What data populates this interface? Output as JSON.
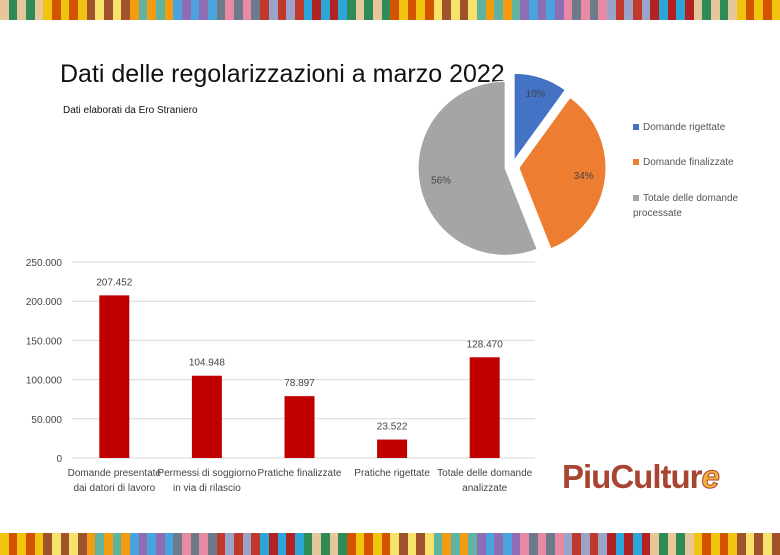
{
  "title": "Dati delle regolarizzazioni a marzo 2022",
  "subtitle": "Dati elaborati da Ero Straniero",
  "logo": {
    "main": "PiuCultur",
    "tail": "e"
  },
  "chart_data": [
    {
      "type": "pie",
      "labels": [
        "Domande rigettate",
        "Domande finalizzate",
        "Totale delle domande processate"
      ],
      "values": [
        10,
        34,
        56
      ],
      "value_labels": [
        "10%",
        "34%",
        "56%"
      ],
      "colors": [
        "#4472c4",
        "#ed7d31",
        "#a5a5a5"
      ],
      "legend": "right"
    },
    {
      "type": "bar",
      "categories": [
        [
          "Domande presentate",
          "dai datori di lavoro"
        ],
        [
          "Permessi di soggiorno",
          "in via di rilascio"
        ],
        [
          "Pratiche finalizzate"
        ],
        [
          "Pratiche rigettate"
        ],
        [
          "Totale delle domande",
          "analizzate"
        ]
      ],
      "values": [
        207452,
        104948,
        78897,
        23522,
        128470
      ],
      "value_labels": [
        "207.452",
        "104.948",
        "78.897",
        "23.522",
        "128.470"
      ],
      "color": "#c00000",
      "ylim": [
        0,
        250000
      ],
      "yticks": [
        0,
        50000,
        100000,
        150000,
        200000,
        250000
      ],
      "ytick_labels": [
        "0",
        "50.000",
        "100.000",
        "150.000",
        "200.000",
        "250.000"
      ],
      "grid": true
    }
  ]
}
